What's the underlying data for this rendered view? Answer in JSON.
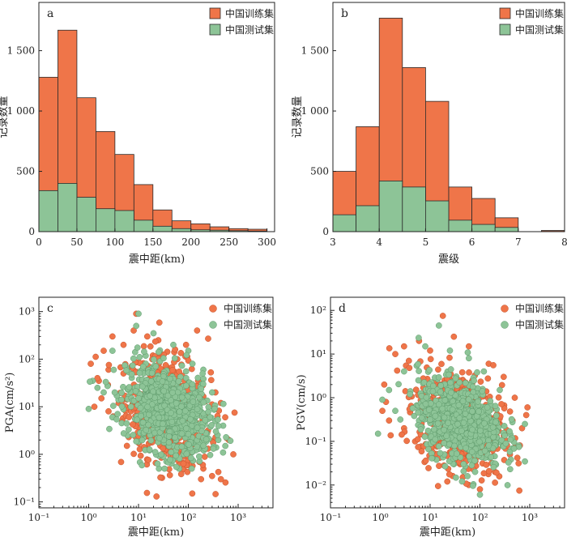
{
  "colors": {
    "train": "#ef7549",
    "test": "#8dc497",
    "bar_edge": "#2b2b2b",
    "axis": "#222222"
  },
  "chart_data": [
    {
      "id": "a",
      "panel_label": "a",
      "type": "bar",
      "stacked": false,
      "xlabel": "震中距(km)",
      "ylabel": "记录数量",
      "xlim": [
        0,
        310
      ],
      "ylim": [
        0,
        1900
      ],
      "xticks": [
        "0",
        "50",
        "100",
        "150",
        "200",
        "250",
        "300"
      ],
      "yticks": [
        "0",
        "500",
        "1 000",
        "1 500"
      ],
      "bin_width": 25,
      "bin_starts": [
        0,
        25,
        50,
        75,
        100,
        125,
        150,
        175,
        200,
        225,
        250,
        275
      ],
      "series": [
        {
          "name": "中国训练集",
          "color": "#ef7549",
          "values": [
            1280,
            1670,
            1110,
            830,
            640,
            390,
            180,
            90,
            65,
            40,
            25,
            20
          ]
        },
        {
          "name": "中国测试集",
          "color": "#8dc497",
          "values": [
            340,
            400,
            285,
            190,
            175,
            95,
            45,
            25,
            15,
            12,
            8,
            5
          ]
        }
      ],
      "legend_position": "top-right",
      "grid": false
    },
    {
      "id": "b",
      "panel_label": "b",
      "type": "bar",
      "stacked": false,
      "xlabel": "震级",
      "ylabel": "记录数量",
      "xlim": [
        3,
        8
      ],
      "ylim": [
        0,
        1900
      ],
      "xticks": [
        "3",
        "4",
        "5",
        "6",
        "7",
        "8"
      ],
      "yticks": [
        "0",
        "500",
        "1 000",
        "1 500"
      ],
      "bin_width": 0.5,
      "bin_starts": [
        3.0,
        3.5,
        4.0,
        4.5,
        5.0,
        5.5,
        6.0,
        6.5,
        7.0,
        7.5
      ],
      "series": [
        {
          "name": "中国训练集",
          "color": "#ef7549",
          "values": [
            500,
            870,
            1770,
            1360,
            1080,
            370,
            275,
            115,
            0,
            10
          ]
        },
        {
          "name": "中国测试集",
          "color": "#8dc497",
          "values": [
            140,
            215,
            420,
            370,
            255,
            95,
            60,
            35,
            0,
            2
          ]
        }
      ],
      "legend_position": "top-right",
      "grid": false
    },
    {
      "id": "c",
      "panel_label": "c",
      "type": "scatter",
      "xlabel": "震中距(km)",
      "ylabel": "PGA(cm/s²)",
      "x_scale": "log",
      "y_scale": "log",
      "xlim": [
        0.1,
        5000
      ],
      "ylim": [
        0.075,
        2000
      ],
      "xticks": [
        "10⁻¹",
        "10⁰",
        "10¹",
        "10²",
        "10³"
      ],
      "yticks": [
        "10⁻¹",
        "10⁰",
        "10¹",
        "10²",
        "10³"
      ],
      "legend_position": "top-right",
      "grid": false,
      "series": [
        {
          "name": "中国训练集",
          "color": "#ef7549",
          "cloud": {
            "x_center": 40,
            "x_range": [
              1,
              1000
            ],
            "y_center": 8,
            "y_range": [
              0.13,
              800
            ]
          },
          "points": [
            [
              9,
              900
            ],
            [
              1.1,
              80
            ],
            [
              1.3,
              10
            ],
            [
              1.6,
              35
            ],
            [
              2,
              150
            ],
            [
              3,
              300
            ],
            [
              5,
              200
            ],
            [
              8,
              400
            ],
            [
              15,
              300
            ],
            [
              25,
              250
            ],
            [
              60,
              100
            ],
            [
              90,
              200
            ],
            [
              150,
              400
            ],
            [
              250,
              270
            ],
            [
              350,
              20
            ],
            [
              450,
              12
            ],
            [
              550,
              6
            ],
            [
              650,
              2
            ],
            [
              800,
              1
            ],
            [
              450,
              0.3
            ],
            [
              300,
              0.35
            ],
            [
              180,
              0.3
            ],
            [
              120,
              0.15
            ],
            [
              200,
              0.5
            ],
            [
              80,
              0.5
            ],
            [
              50,
              0.8
            ],
            [
              30,
              1
            ],
            [
              18,
              2
            ],
            [
              12,
              5
            ],
            [
              7,
              8
            ],
            [
              4,
              12
            ],
            [
              2.5,
              8
            ],
            [
              1.8,
              15
            ],
            [
              5,
              50
            ],
            [
              2.5,
              60
            ],
            [
              1.5,
              40
            ]
          ]
        },
        {
          "name": "中国测试集",
          "color": "#8dc497",
          "cloud": {
            "x_center": 40,
            "x_range": [
              1,
              700
            ],
            "y_center": 8,
            "y_range": [
              0.5,
              900
            ]
          },
          "points": [
            [
              10,
              900
            ],
            [
              1,
              9
            ],
            [
              1.2,
              35
            ],
            [
              1.5,
              25
            ],
            [
              3,
              150
            ],
            [
              9,
              500
            ],
            [
              20,
              350
            ],
            [
              50,
              200
            ],
            [
              100,
              150
            ],
            [
              200,
              60
            ],
            [
              300,
              20
            ],
            [
              350,
              5
            ],
            [
              400,
              2
            ],
            [
              150,
              1.5
            ],
            [
              80,
              1
            ],
            [
              40,
              1.5
            ],
            [
              25,
              3
            ],
            [
              12,
              4
            ],
            [
              6,
              2.5
            ],
            [
              3,
              6
            ],
            [
              2,
              20
            ],
            [
              500,
              4
            ]
          ]
        }
      ]
    },
    {
      "id": "d",
      "panel_label": "d",
      "type": "scatter",
      "xlabel": "震中距(km)",
      "ylabel": "PGV(cm/s)",
      "x_scale": "log",
      "y_scale": "log",
      "xlim": [
        0.1,
        5000
      ],
      "ylim": [
        0.003,
        200
      ],
      "xticks": [
        "10⁻¹",
        "10⁰",
        "10¹",
        "10²",
        "10³"
      ],
      "yticks": [
        "10⁻²",
        "10⁻¹",
        "10⁰",
        "10¹",
        "10²"
      ],
      "legend_position": "top-right",
      "grid": false,
      "series": [
        {
          "name": "中国训练集",
          "color": "#ef7549",
          "cloud": {
            "x_center": 40,
            "x_range": [
              1,
              1000
            ],
            "y_center": 0.3,
            "y_range": [
              0.006,
              70
            ]
          },
          "points": [
            [
              18,
              75
            ],
            [
              2,
              10
            ],
            [
              1.2,
              2
            ],
            [
              1.1,
              0.5
            ],
            [
              1.3,
              0.8
            ],
            [
              3,
              15
            ],
            [
              6,
              20
            ],
            [
              10,
              12
            ],
            [
              30,
              25
            ],
            [
              60,
              15
            ],
            [
              150,
              6
            ],
            [
              300,
              3
            ],
            [
              500,
              1
            ],
            [
              900,
              0.6
            ],
            [
              850,
              0.4
            ],
            [
              700,
              0.2
            ],
            [
              400,
              0.05
            ],
            [
              200,
              0.02
            ],
            [
              100,
              0.008
            ],
            [
              60,
              0.01
            ],
            [
              40,
              0.03
            ],
            [
              20,
              0.05
            ],
            [
              10,
              0.08
            ],
            [
              5,
              0.1
            ],
            [
              3,
              0.2
            ],
            [
              1.5,
              0.3
            ],
            [
              450,
              0.3
            ],
            [
              250,
              0.1
            ]
          ]
        },
        {
          "name": "中国测试集",
          "color": "#8dc497",
          "cloud": {
            "x_center": 40,
            "x_range": [
              1,
              800
            ],
            "y_center": 0.3,
            "y_range": [
              0.006,
              45
            ]
          },
          "points": [
            [
              15,
              45
            ],
            [
              0.9,
              0.15
            ],
            [
              1.1,
              0.9
            ],
            [
              1.5,
              1.5
            ],
            [
              3,
              4
            ],
            [
              8,
              15
            ],
            [
              25,
              12
            ],
            [
              60,
              8
            ],
            [
              120,
              4
            ],
            [
              250,
              1.5
            ],
            [
              800,
              0.25
            ],
            [
              600,
              0.08
            ],
            [
              100,
              0.006
            ],
            [
              80,
              0.02
            ],
            [
              30,
              0.03
            ],
            [
              12,
              0.1
            ],
            [
              6,
              0.3
            ],
            [
              2,
              0.5
            ]
          ]
        }
      ]
    }
  ]
}
